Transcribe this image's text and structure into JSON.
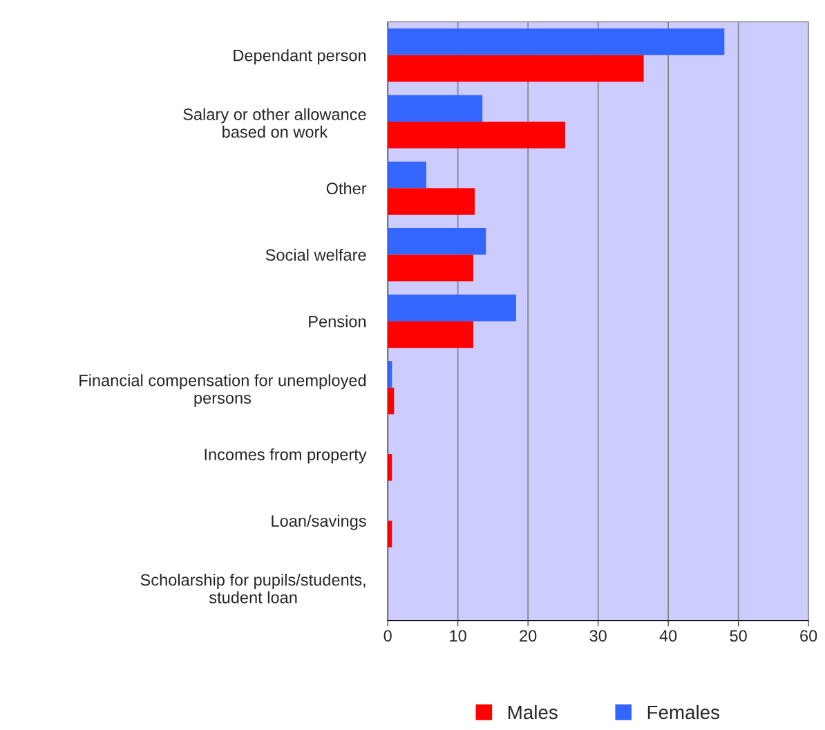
{
  "chart_data": {
    "type": "bar",
    "orientation": "horizontal",
    "categories": [
      "Dependant person",
      "Salary or other allowance\nbased on work",
      "Other",
      "Social welfare",
      "Pension",
      "Financial compensation for unemployed\npersons",
      "Incomes from property",
      "Loan/savings",
      "Scholarship for pupils/students,\nstudent loan"
    ],
    "series": [
      {
        "name": "Females",
        "color": "#3366ff",
        "values": [
          48.0,
          13.5,
          5.5,
          14.0,
          18.3,
          0.6,
          0,
          0,
          0
        ]
      },
      {
        "name": "Males",
        "color": "#ff0000",
        "values": [
          36.5,
          25.3,
          12.4,
          12.2,
          12.2,
          0.9,
          0.6,
          0.6,
          0
        ]
      }
    ],
    "xlim": [
      0,
      60
    ],
    "xticks": [
      0,
      10,
      20,
      30,
      40,
      50,
      60
    ],
    "grid": "x",
    "legend": "bottom"
  }
}
